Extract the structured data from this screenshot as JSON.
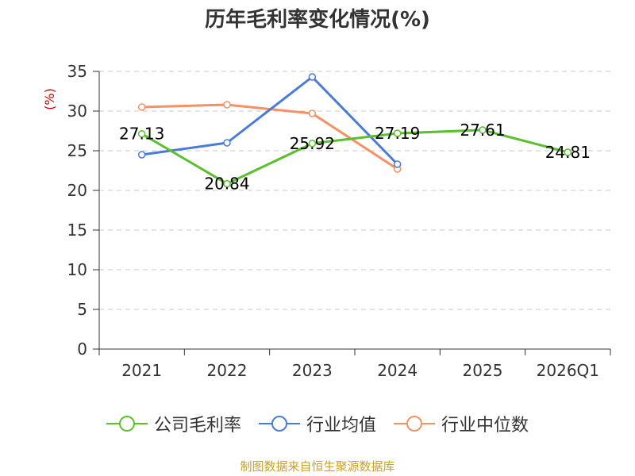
{
  "footer_text": "制图数据来自恒生聚源数据库",
  "colors": {
    "series": [
      "#5cbf2e",
      "#4a7bd8",
      "#f59162"
    ],
    "grid": "#c8c8c8",
    "axis": "#333333",
    "ylabel": "#cc0000",
    "footer": "#c9a227"
  },
  "chart_data": {
    "type": "line",
    "title": "历年毛利率变化情况(%)",
    "xlabel": "",
    "ylabel": "(%)",
    "categories": [
      "2021",
      "2022",
      "2023",
      "2024",
      "2025",
      "2026Q1"
    ],
    "ylim": [
      0,
      35
    ],
    "yticks": [
      0,
      5,
      10,
      15,
      20,
      25,
      30,
      35
    ],
    "grid": true,
    "legend_position": "bottom",
    "series": [
      {
        "name": "公司毛利率",
        "values": [
          27.13,
          20.84,
          25.92,
          27.19,
          27.61,
          24.81
        ],
        "labels": [
          "27.13",
          "20.84",
          "25.92",
          "27.19",
          "27.61",
          "24.81"
        ]
      },
      {
        "name": "行业均值",
        "values": [
          24.5,
          26.0,
          34.3,
          23.3,
          null,
          null
        ]
      },
      {
        "name": "行业中位数",
        "values": [
          30.5,
          30.8,
          29.7,
          22.7,
          null,
          null
        ]
      }
    ]
  }
}
